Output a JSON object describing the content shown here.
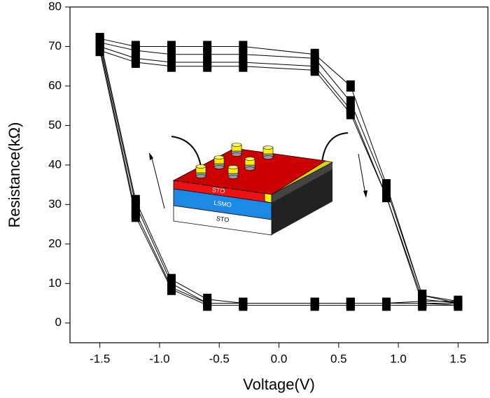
{
  "chart_data": {
    "type": "line",
    "x_label": "Voltage(V)",
    "y_label": "Resistance(kΩ)",
    "xlim": [
      -1.75,
      1.75
    ],
    "ylim": [
      -5,
      80
    ],
    "xticks": [
      -1.5,
      {
        "value": -1,
        "label": "-1.0"
      },
      -0.5,
      {
        "value": 0,
        "label": "0.0"
      },
      0.5,
      {
        "value": 1,
        "label": "1.0"
      },
      1.5
    ],
    "yticks": [
      0,
      10,
      20,
      30,
      40,
      50,
      60,
      70,
      80
    ],
    "color": "#000000",
    "annotations": [
      "STO",
      "LSMO",
      "STO"
    ],
    "series": [
      {
        "x": [
          -1.5,
          -1.2,
          -0.9,
          -0.6,
          -0.3,
          0.3,
          0.6,
          0.9,
          1.2,
          1.5,
          1.2,
          0.9,
          0.6,
          0.3,
          -0.3,
          -0.6,
          -0.9,
          -1.2,
          -1.5
        ],
        "values": [
          70,
          67,
          66,
          66,
          66,
          65,
          54,
          32,
          6,
          5,
          5,
          5,
          5,
          5,
          5,
          5,
          9,
          28,
          70
        ]
      },
      {
        "x": [
          -1.5,
          -1.2,
          -0.9,
          -0.6,
          -0.3,
          0.3,
          0.6,
          0.9,
          1.2,
          1.5,
          1.2,
          0.9,
          0.6,
          0.3,
          -0.3,
          -0.6,
          -0.9,
          -1.2,
          -1.5
        ],
        "values": [
          71,
          69,
          68,
          68,
          68,
          67,
          56,
          34,
          7,
          5,
          5,
          5,
          5,
          5,
          5,
          5,
          10,
          30,
          71
        ]
      },
      {
        "x": [
          -1.5,
          -1.2,
          -0.9,
          -0.6,
          -0.3,
          0.3,
          0.6,
          0.9,
          1.2,
          1.5,
          1.2,
          0.9,
          0.6,
          0.3,
          -0.3,
          -0.6,
          -0.9,
          -1.2,
          -1.5
        ],
        "values": [
          69,
          66,
          65,
          65,
          65,
          64,
          53,
          32,
          5,
          4.5,
          4.5,
          4.5,
          4.5,
          4.5,
          4.5,
          4.5,
          8.5,
          27,
          69
        ]
      },
      {
        "x": [
          -1.5,
          -1.2,
          -0.9,
          -0.6,
          -0.3,
          0.3,
          0.6,
          0.9,
          1.2,
          1.5,
          1.2,
          0.9,
          0.6,
          0.3,
          -0.3,
          -0.6,
          -0.9,
          -1.2,
          -1.5
        ],
        "values": [
          72,
          70,
          70,
          70,
          70,
          68,
          60,
          35,
          7,
          5.5,
          5.5,
          5,
          5,
          5,
          5,
          6,
          11,
          31,
          72
        ]
      }
    ]
  }
}
